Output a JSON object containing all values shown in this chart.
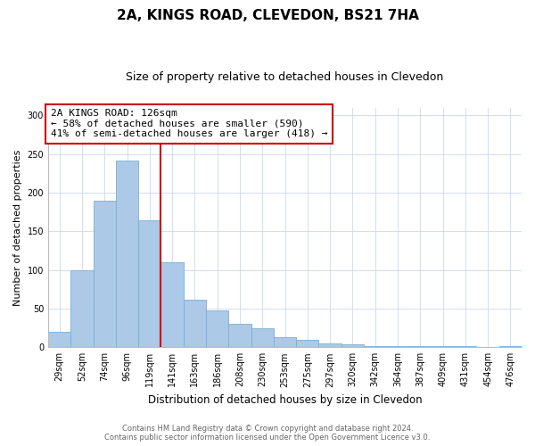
{
  "title": "2A, KINGS ROAD, CLEVEDON, BS21 7HA",
  "subtitle": "Size of property relative to detached houses in Clevedon",
  "xlabel": "Distribution of detached houses by size in Clevedon",
  "ylabel": "Number of detached properties",
  "bar_labels": [
    "29sqm",
    "52sqm",
    "74sqm",
    "96sqm",
    "119sqm",
    "141sqm",
    "163sqm",
    "186sqm",
    "208sqm",
    "230sqm",
    "253sqm",
    "275sqm",
    "297sqm",
    "320sqm",
    "342sqm",
    "364sqm",
    "387sqm",
    "409sqm",
    "431sqm",
    "454sqm",
    "476sqm"
  ],
  "bar_values": [
    20,
    99,
    190,
    242,
    164,
    110,
    62,
    48,
    30,
    24,
    13,
    10,
    5,
    4,
    2,
    1,
    1,
    1,
    1,
    0,
    2
  ],
  "bar_color": "#adc9e8",
  "bar_edge_color": "#7aaed4",
  "vline_x_idx": 4.5,
  "vline_color": "#cc0000",
  "annotation_title": "2A KINGS ROAD: 126sqm",
  "annotation_line1": "← 58% of detached houses are smaller (590)",
  "annotation_line2": "41% of semi-detached houses are larger (418) →",
  "annotation_box_color": "#ffffff",
  "annotation_box_edge": "#cc0000",
  "ylim": [
    0,
    310
  ],
  "footnote1": "Contains HM Land Registry data © Crown copyright and database right 2024.",
  "footnote2": "Contains public sector information licensed under the Open Government Licence v3.0.",
  "title_fontsize": 11,
  "subtitle_fontsize": 9,
  "annotation_fontsize": 8,
  "ylabel_fontsize": 8,
  "xlabel_fontsize": 8.5,
  "tick_fontsize": 7,
  "footnote_fontsize": 6
}
